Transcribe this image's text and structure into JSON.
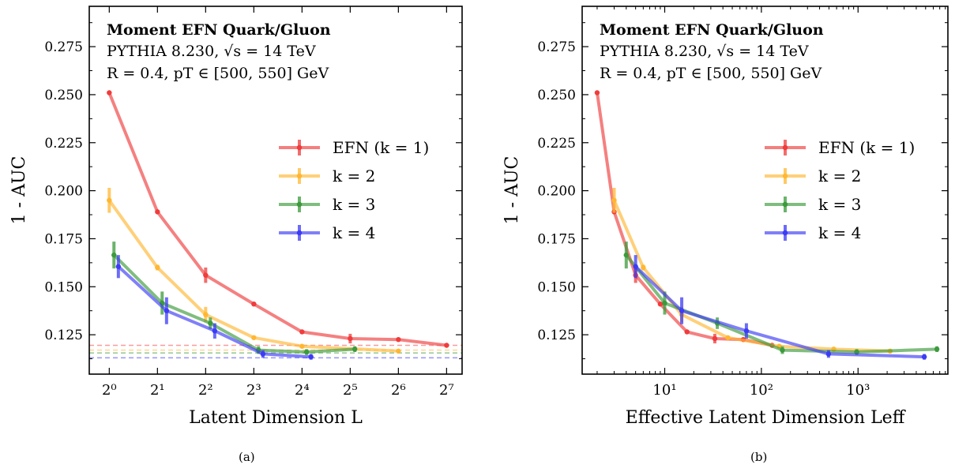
{
  "chart_data": [
    {
      "type": "line",
      "panel": "(a)",
      "xscale": "log2",
      "xlabel": "Latent Dimension L",
      "ylabel": "1 - AUC",
      "xlim": [
        0.75,
        160
      ],
      "ylim": [
        0.1045,
        0.296
      ],
      "xticks": [
        {
          "value": 1,
          "label": "2⁰"
        },
        {
          "value": 2,
          "label": "2¹"
        },
        {
          "value": 4,
          "label": "2²"
        },
        {
          "value": 8,
          "label": "2³"
        },
        {
          "value": 16,
          "label": "2⁴"
        },
        {
          "value": 32,
          "label": "2⁵"
        },
        {
          "value": 64,
          "label": "2⁶"
        },
        {
          "value": 128,
          "label": "2⁷"
        }
      ],
      "yticks": [
        0.125,
        0.15,
        0.175,
        0.2,
        0.225,
        0.25,
        0.275
      ],
      "ytick_labels": [
        "0.125",
        "0.150",
        "0.175",
        "0.200",
        "0.225",
        "0.250",
        "0.275"
      ],
      "annotation": {
        "title": "Moment EFN Quark/Gluon",
        "line1": "PYTHIA 8.230, √s = 14 TeV",
        "line2": "R = 0.4, pT ∈ [500, 550] GeV"
      },
      "legend": {
        "position": "center-right",
        "entries": [
          "EFN (k = 1)",
          "k = 2",
          "k = 3",
          "k = 4"
        ]
      },
      "series": [
        {
          "name": "EFN (k = 1)",
          "color": "#f03c3c",
          "baseline": 0.1195,
          "x": [
            1,
            2,
            4,
            8,
            16,
            32,
            64,
            128
          ],
          "y": [
            0.251,
            0.189,
            0.156,
            0.141,
            0.1265,
            0.123,
            0.1225,
            0.1195
          ],
          "err": [
            0.0005,
            0.0008,
            0.004,
            0.0008,
            0.001,
            0.0025,
            0.001,
            0.0008
          ]
        },
        {
          "name": "k = 2",
          "color": "#ffb732",
          "baseline": 0.117,
          "x": [
            1,
            2,
            4,
            8,
            16,
            64
          ],
          "y": [
            0.195,
            0.16,
            0.1355,
            0.1235,
            0.119,
            0.1165
          ],
          "err": [
            0.0065,
            0.0015,
            0.004,
            0.001,
            0.001,
            0.001
          ]
        },
        {
          "name": "k = 3",
          "color": "#3c9a3c",
          "baseline": 0.1155,
          "x": [
            1.07,
            2.14,
            4.28,
            8.56,
            17.1,
            34.2
          ],
          "y": [
            0.1665,
            0.1415,
            0.131,
            0.117,
            0.116,
            0.1175
          ],
          "err": [
            0.007,
            0.006,
            0.003,
            0.002,
            0.0015,
            0.0015
          ]
        },
        {
          "name": "k = 4",
          "color": "#3c3cf5",
          "baseline": 0.113,
          "x": [
            1.14,
            2.28,
            4.56,
            9.12,
            18.2
          ],
          "y": [
            0.1605,
            0.1375,
            0.127,
            0.115,
            0.1135
          ],
          "err": [
            0.006,
            0.007,
            0.004,
            0.002,
            0.0015
          ]
        }
      ]
    },
    {
      "type": "line",
      "panel": "(b)",
      "xscale": "log10",
      "xlabel": "Effective Latent Dimension Leff",
      "ylabel": "1 - AUC",
      "xlim": [
        1.4,
        8500
      ],
      "ylim": [
        0.1045,
        0.296
      ],
      "xticks": [
        {
          "value": 10,
          "label": "10¹"
        },
        {
          "value": 100,
          "label": "10²"
        },
        {
          "value": 1000,
          "label": "10³"
        }
      ],
      "yticks": [
        0.125,
        0.15,
        0.175,
        0.2,
        0.225,
        0.25,
        0.275
      ],
      "ytick_labels": [
        "0.125",
        "0.150",
        "0.175",
        "0.200",
        "0.225",
        "0.250",
        "0.275"
      ],
      "annotation": {
        "title": "Moment EFN Quark/Gluon",
        "line1": "PYTHIA 8.230, √s = 14 TeV",
        "line2": "R = 0.4, pT ∈ [500, 550] GeV"
      },
      "legend": {
        "position": "center-right",
        "entries": [
          "EFN (k = 1)",
          "k = 2",
          "k = 3",
          "k = 4"
        ]
      },
      "series": [
        {
          "name": "EFN (k = 1)",
          "color": "#f03c3c",
          "x": [
            2,
            3,
            5,
            9,
            17,
            33,
            65,
            129
          ],
          "y": [
            0.251,
            0.189,
            0.156,
            0.141,
            0.1265,
            0.123,
            0.1225,
            0.1195
          ],
          "err": [
            0.0005,
            0.0008,
            0.004,
            0.0008,
            0.001,
            0.0025,
            0.001,
            0.0008
          ]
        },
        {
          "name": "k = 2",
          "color": "#ffb732",
          "x": [
            3,
            6,
            15,
            45,
            153,
            561,
            2145
          ],
          "y": [
            0.195,
            0.16,
            0.1355,
            0.1235,
            0.119,
            0.1175,
            0.1165
          ],
          "err": [
            0.0065,
            0.0015,
            0.004,
            0.001,
            0.001,
            0.001,
            0.001
          ]
        },
        {
          "name": "k = 3",
          "color": "#3c9a3c",
          "x": [
            4,
            10,
            35,
            165,
            969,
            6545
          ],
          "y": [
            0.1665,
            0.1415,
            0.131,
            0.117,
            0.116,
            0.1175
          ],
          "err": [
            0.007,
            0.006,
            0.003,
            0.002,
            0.0015,
            0.0015
          ]
        },
        {
          "name": "k = 4",
          "color": "#3c3cf5",
          "x": [
            5,
            15,
            70,
            495,
            4845
          ],
          "y": [
            0.1605,
            0.1375,
            0.127,
            0.115,
            0.1135
          ],
          "err": [
            0.006,
            0.007,
            0.004,
            0.002,
            0.0015
          ]
        }
      ]
    }
  ],
  "panel_labels": {
    "a": "(a)",
    "b": "(b)"
  }
}
